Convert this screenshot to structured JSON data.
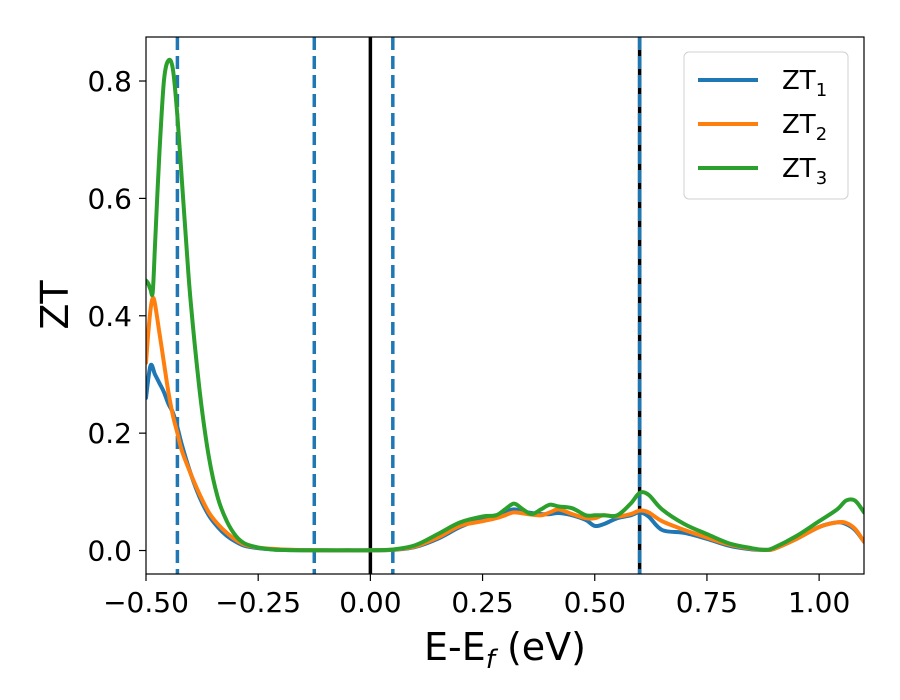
{
  "chart_data": {
    "type": "line",
    "xlabel": "E-E",
    "xlabel_sub": "f",
    "xlabel_unit": " (eV)",
    "ylabel": "ZT",
    "xlim": [
      -0.5,
      1.1
    ],
    "ylim": [
      -0.04,
      0.875
    ],
    "x_ticks": [
      -0.5,
      -0.25,
      0.0,
      0.25,
      0.5,
      0.75,
      1.0
    ],
    "x_tick_labels": [
      "−0.50",
      "−0.25",
      "0.00",
      "0.25",
      "0.50",
      "0.75",
      "1.00"
    ],
    "y_ticks": [
      0.0,
      0.2,
      0.4,
      0.6,
      0.8
    ],
    "y_tick_labels": [
      "0.0",
      "0.2",
      "0.4",
      "0.6",
      "0.8"
    ],
    "grid": false,
    "legend_position": "top-right",
    "colors": {
      "ZT1": "#1f77b4",
      "ZT2": "#ff7f0e",
      "ZT3": "#2ca02c",
      "fermi": "#000000",
      "dashed": "#1f77b4"
    },
    "vertical_lines": [
      {
        "x": -0.43,
        "style": "dashed",
        "color": "#1f77b4"
      },
      {
        "x": -0.125,
        "style": "dashed",
        "color": "#1f77b4"
      },
      {
        "x": 0.0,
        "style": "solid",
        "color": "#000000"
      },
      {
        "x": 0.05,
        "style": "dashed",
        "color": "#1f77b4"
      },
      {
        "x": 0.6,
        "style": "solid",
        "color": "#000000"
      },
      {
        "x": 0.6,
        "style": "dashed",
        "color": "#1f77b4"
      }
    ],
    "series": [
      {
        "name": "ZT",
        "name_sub": "1",
        "color": "#1f77b4",
        "x": [
          -0.5,
          -0.49,
          -0.48,
          -0.47,
          -0.46,
          -0.45,
          -0.44,
          -0.43,
          -0.42,
          -0.4,
          -0.38,
          -0.36,
          -0.34,
          -0.32,
          -0.3,
          -0.28,
          -0.25,
          -0.22,
          -0.2,
          -0.15,
          -0.1,
          -0.05,
          0.0,
          0.05,
          0.1,
          0.15,
          0.2,
          0.25,
          0.28,
          0.3,
          0.32,
          0.35,
          0.38,
          0.4,
          0.42,
          0.45,
          0.48,
          0.5,
          0.52,
          0.55,
          0.58,
          0.6,
          0.62,
          0.65,
          0.7,
          0.75,
          0.8,
          0.85,
          0.88,
          0.9,
          0.95,
          1.0,
          1.04,
          1.06,
          1.08,
          1.1
        ],
        "y": [
          0.26,
          0.315,
          0.3,
          0.285,
          0.27,
          0.25,
          0.235,
          0.21,
          0.18,
          0.13,
          0.09,
          0.06,
          0.04,
          0.025,
          0.015,
          0.008,
          0.004,
          0.002,
          0.001,
          0.0005,
          0.0002,
          0.0002,
          0.0003,
          0.001,
          0.006,
          0.02,
          0.04,
          0.055,
          0.06,
          0.065,
          0.07,
          0.065,
          0.062,
          0.062,
          0.064,
          0.06,
          0.052,
          0.042,
          0.045,
          0.055,
          0.06,
          0.065,
          0.058,
          0.035,
          0.03,
          0.02,
          0.008,
          0.002,
          0.001,
          0.003,
          0.02,
          0.04,
          0.048,
          0.045,
          0.035,
          0.015
        ]
      },
      {
        "name": "ZT",
        "name_sub": "2",
        "color": "#ff7f0e",
        "x": [
          -0.5,
          -0.495,
          -0.49,
          -0.485,
          -0.48,
          -0.47,
          -0.46,
          -0.45,
          -0.44,
          -0.43,
          -0.42,
          -0.4,
          -0.38,
          -0.36,
          -0.34,
          -0.32,
          -0.3,
          -0.28,
          -0.25,
          -0.22,
          -0.2,
          -0.15,
          -0.1,
          -0.05,
          0.0,
          0.05,
          0.1,
          0.15,
          0.2,
          0.25,
          0.28,
          0.3,
          0.32,
          0.35,
          0.38,
          0.4,
          0.42,
          0.45,
          0.48,
          0.5,
          0.52,
          0.55,
          0.58,
          0.6,
          0.62,
          0.65,
          0.7,
          0.75,
          0.8,
          0.85,
          0.88,
          0.9,
          0.95,
          1.0,
          1.04,
          1.06,
          1.08,
          1.1
        ],
        "y": [
          0.32,
          0.37,
          0.41,
          0.43,
          0.42,
          0.37,
          0.32,
          0.27,
          0.23,
          0.2,
          0.17,
          0.13,
          0.095,
          0.065,
          0.045,
          0.03,
          0.018,
          0.01,
          0.005,
          0.003,
          0.002,
          0.0008,
          0.0003,
          0.0003,
          0.0004,
          0.0015,
          0.007,
          0.022,
          0.042,
          0.05,
          0.055,
          0.06,
          0.065,
          0.062,
          0.06,
          0.065,
          0.07,
          0.062,
          0.055,
          0.055,
          0.06,
          0.058,
          0.062,
          0.068,
          0.065,
          0.05,
          0.035,
          0.022,
          0.01,
          0.003,
          0.001,
          0.003,
          0.02,
          0.04,
          0.048,
          0.047,
          0.037,
          0.015
        ]
      },
      {
        "name": "ZT",
        "name_sub": "3",
        "color": "#2ca02c",
        "x": [
          -0.5,
          -0.495,
          -0.49,
          -0.485,
          -0.48,
          -0.47,
          -0.46,
          -0.45,
          -0.44,
          -0.43,
          -0.42,
          -0.41,
          -0.4,
          -0.38,
          -0.36,
          -0.34,
          -0.32,
          -0.3,
          -0.28,
          -0.25,
          -0.22,
          -0.2,
          -0.15,
          -0.1,
          -0.05,
          0.0,
          0.05,
          0.1,
          0.15,
          0.2,
          0.25,
          0.28,
          0.3,
          0.32,
          0.34,
          0.36,
          0.38,
          0.4,
          0.42,
          0.45,
          0.48,
          0.5,
          0.52,
          0.55,
          0.58,
          0.6,
          0.62,
          0.65,
          0.7,
          0.75,
          0.8,
          0.85,
          0.88,
          0.9,
          0.95,
          1.0,
          1.04,
          1.06,
          1.08,
          1.1
        ],
        "y": [
          0.46,
          0.455,
          0.445,
          0.44,
          0.52,
          0.68,
          0.8,
          0.835,
          0.82,
          0.74,
          0.63,
          0.52,
          0.42,
          0.27,
          0.16,
          0.09,
          0.05,
          0.025,
          0.012,
          0.005,
          0.002,
          0.001,
          0.0005,
          0.0003,
          0.0003,
          0.0005,
          0.0018,
          0.009,
          0.028,
          0.048,
          0.058,
          0.06,
          0.07,
          0.08,
          0.07,
          0.062,
          0.07,
          0.078,
          0.075,
          0.072,
          0.06,
          0.06,
          0.06,
          0.06,
          0.08,
          0.098,
          0.095,
          0.07,
          0.045,
          0.028,
          0.012,
          0.004,
          0.001,
          0.005,
          0.025,
          0.05,
          0.07,
          0.085,
          0.085,
          0.065
        ]
      }
    ]
  }
}
